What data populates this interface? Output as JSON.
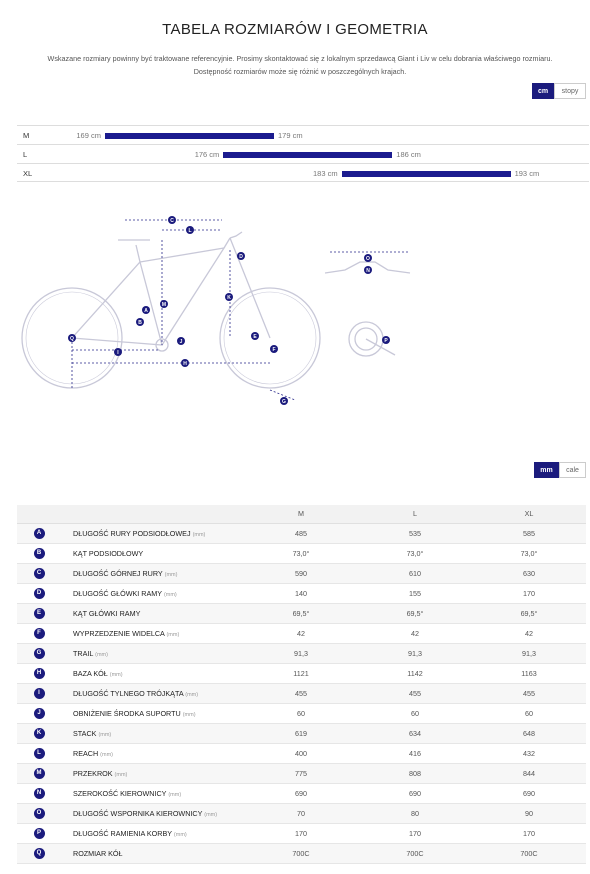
{
  "title": "TABELA ROZMIARÓW I GEOMETRIA",
  "intro": {
    "line1": "Wskazane rozmiary powinny być traktowane referencyjnie. Prosimy skontaktować się z lokalnym sprzedawcą Giant i Liv w celu dobrania właściwego rozmiaru.",
    "line2": "Dostępność rozmiarów może się różnić w poszczególnych krajach."
  },
  "height_units": {
    "active": "cm",
    "other": "stopy"
  },
  "height_rows": [
    {
      "size": "M",
      "min": "169 cm",
      "max": "179 cm",
      "min_val": 169,
      "max_val": 179
    },
    {
      "size": "L",
      "min": "176 cm",
      "max": "186 cm",
      "min_val": 176,
      "max_val": 186
    },
    {
      "size": "XL",
      "min": "183 cm",
      "max": "193 cm",
      "min_val": 183,
      "max_val": 193
    }
  ],
  "diagram_letters": [
    "A",
    "B",
    "C",
    "D",
    "E",
    "F",
    "G",
    "H",
    "I",
    "J",
    "K",
    "L",
    "M",
    "N",
    "O",
    "P",
    "Q"
  ],
  "geometry_units": {
    "active": "mm",
    "other": "cale"
  },
  "geometry": {
    "columns": [
      "M",
      "L",
      "XL"
    ],
    "rows": [
      {
        "badge": "A",
        "name": "DŁUGOŚĆ RURY PODSIODŁOWEJ",
        "unit": "(mm)",
        "values": [
          "485",
          "535",
          "585"
        ]
      },
      {
        "badge": "B",
        "name": "KĄT PODSIODŁOWY",
        "unit": "",
        "values": [
          "73,0°",
          "73,0°",
          "73,0°"
        ]
      },
      {
        "badge": "C",
        "name": "DŁUGOŚĆ GÓRNEJ RURY",
        "unit": "(mm)",
        "values": [
          "590",
          "610",
          "630"
        ]
      },
      {
        "badge": "D",
        "name": "DŁUGOŚĆ GŁÓWKI RAMY",
        "unit": "(mm)",
        "values": [
          "140",
          "155",
          "170"
        ]
      },
      {
        "badge": "E",
        "name": "KĄT GŁÓWKI RAMY",
        "unit": "",
        "values": [
          "69,5°",
          "69,5°",
          "69,5°"
        ]
      },
      {
        "badge": "F",
        "name": "WYPRZEDZENIE WIDELCA",
        "unit": "(mm)",
        "values": [
          "42",
          "42",
          "42"
        ]
      },
      {
        "badge": "G",
        "name": "TRAIL",
        "unit": "(mm)",
        "values": [
          "91,3",
          "91,3",
          "91,3"
        ]
      },
      {
        "badge": "H",
        "name": "BAZA KÓŁ",
        "unit": "(mm)",
        "values": [
          "1121",
          "1142",
          "1163"
        ]
      },
      {
        "badge": "I",
        "name": "DŁUGOŚĆ TYLNEGO TRÓJKĄTA",
        "unit": "(mm)",
        "values": [
          "455",
          "455",
          "455"
        ]
      },
      {
        "badge": "J",
        "name": "OBNIŻENIE ŚRODKA SUPORTU",
        "unit": "(mm)",
        "values": [
          "60",
          "60",
          "60"
        ]
      },
      {
        "badge": "K",
        "name": "STACK",
        "unit": "(mm)",
        "values": [
          "619",
          "634",
          "648"
        ]
      },
      {
        "badge": "L",
        "name": "REACH",
        "unit": "(mm)",
        "values": [
          "400",
          "416",
          "432"
        ]
      },
      {
        "badge": "M",
        "name": "PRZEKROK",
        "unit": "(mm)",
        "values": [
          "775",
          "808",
          "844"
        ]
      },
      {
        "badge": "N",
        "name": "SZEROKOŚĆ KIEROWNICY",
        "unit": "(mm)",
        "values": [
          "690",
          "690",
          "690"
        ]
      },
      {
        "badge": "O",
        "name": "DŁUGOŚĆ WSPORNIKA KIEROWNICY",
        "unit": "(mm)",
        "values": [
          "70",
          "80",
          "90"
        ]
      },
      {
        "badge": "P",
        "name": "DŁUGOŚĆ RAMIENIA KORBY",
        "unit": "(mm)",
        "values": [
          "170",
          "170",
          "170"
        ]
      },
      {
        "badge": "Q",
        "name": "ROZMIAR KÓŁ",
        "unit": "",
        "values": [
          "700C",
          "700C",
          "700C"
        ]
      }
    ]
  },
  "colors": {
    "accent": "#1b1b7d",
    "bar": "#1b1b8f",
    "line": "#c8c8d8"
  }
}
